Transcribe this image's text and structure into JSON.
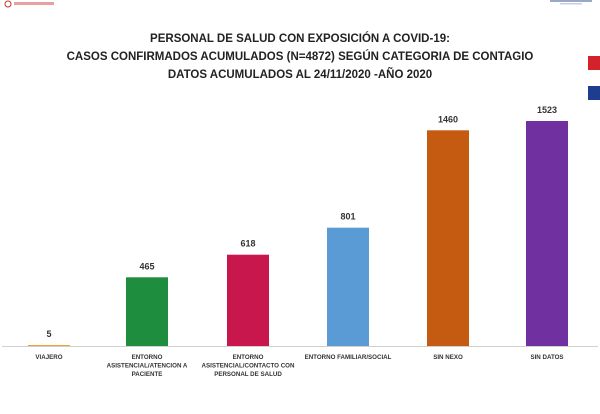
{
  "header": {
    "logo_icon": "ministry-logo-icon",
    "right_mark_icon": "institution-mark-icon",
    "flag_colors": [
      "#d3222a",
      "#ffffff",
      "#1d3d8f"
    ]
  },
  "chart_data": {
    "type": "bar",
    "title": [
      "PERSONAL DE SALUD CON EXPOSICIÓN A COVID-19:",
      "CASOS CONFIRMADOS  ACUMULADOS (N=4872) SEGÚN CATEGORIA DE CONTAGIO",
      "DATOS ACUMULADOS  AL 24/11/2020 -AÑO 2020"
    ],
    "categories": [
      [
        "VIAJERO"
      ],
      [
        "ENTORNO",
        "ASISTENCIAL/ATENCION A",
        "PACIENTE"
      ],
      [
        "ENTORNO",
        "ASISTENCIAL/CONTACTO CON",
        "PERSONAL DE SALUD"
      ],
      [
        "ENTORNO FAMILIAR/SOCIAL"
      ],
      [
        "SIN NEXO"
      ],
      [
        "SIN DATOS"
      ]
    ],
    "values": [
      5,
      465,
      618,
      801,
      1460,
      1523
    ],
    "colors": [
      "#f2a02c",
      "#1e8e3e",
      "#c8174c",
      "#5b9bd5",
      "#c55a11",
      "#7030a0"
    ],
    "ylim": [
      0,
      1600
    ],
    "grid": false,
    "legend": "none",
    "xlabel": "",
    "ylabel": ""
  }
}
